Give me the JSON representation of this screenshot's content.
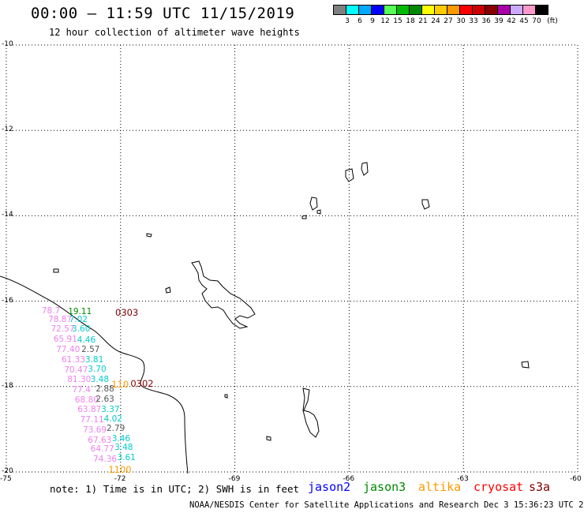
{
  "title": "00:00 – 11:59 UTC 11/15/2019",
  "subtitle": "12 hour collection of altimeter wave heights",
  "note": "note: 1) Time is in UTC; 2) SWH is in feet",
  "credits": "NOAA/NESDIS Center for Satellite Applications and Research   Dec  3 15:36:23 UTC 2019",
  "satellites": [
    {
      "name": "jason2",
      "color": "#0000ff"
    },
    {
      "name": "jason3",
      "color": "#008a00"
    },
    {
      "name": "altika",
      "color": "#ff9900"
    },
    {
      "name": "cryosat",
      "color": "#ff0000"
    },
    {
      "name": "s3a",
      "color": "#800000"
    }
  ],
  "color_scale": {
    "unit": "(ft)",
    "labels": [
      "3",
      "6",
      "9",
      "12",
      "15",
      "18",
      "21",
      "24",
      "27",
      "30",
      "33",
      "36",
      "39",
      "42",
      "45",
      "70"
    ],
    "colors": [
      "#808080",
      "#00ffff",
      "#00aaff",
      "#0000ff",
      "#55ff55",
      "#00bb00",
      "#008800",
      "#ffff00",
      "#ffcc00",
      "#ff9900",
      "#ff0000",
      "#cc0000",
      "#880000",
      "#aa00aa",
      "#ccaaff",
      "#ff99cc",
      "#000000"
    ]
  },
  "axes": {
    "lat_labels": [
      "-10",
      "-12",
      "-14",
      "-16",
      "-18",
      "-20"
    ],
    "lon_labels": [
      "-75",
      "-72",
      "-69",
      "-66",
      "-63",
      "-60"
    ]
  },
  "time_labels": [
    {
      "text": "0303",
      "lon": -72.14,
      "lat": -16.26,
      "color": "#800000"
    },
    {
      "text": "0302",
      "lon": -71.74,
      "lat": -17.93,
      "color": "#800000"
    },
    {
      "text": "1100",
      "lon": -72.32,
      "lat": -19.95,
      "color": "#ff9900"
    },
    {
      "text": "110",
      "lon": -72.24,
      "lat": -17.94,
      "color": "#ff9900"
    }
  ],
  "observations": [
    {
      "text": "78.7",
      "lon": -74.07,
      "lat": -16.25,
      "color": "#ee82ee"
    },
    {
      "text": "19.11",
      "lon": -73.38,
      "lat": -16.26,
      "color": "#008a00"
    },
    {
      "text": "78.87",
      "lon": -73.9,
      "lat": -16.45,
      "color": "#ee82ee"
    },
    {
      "text": "7.02",
      "lon": -73.35,
      "lat": -16.46,
      "color": "#00cccc"
    },
    {
      "text": "72.57",
      "lon": -73.83,
      "lat": -16.68,
      "color": "#ee82ee"
    },
    {
      "text": "3.60",
      "lon": -73.28,
      "lat": -16.68,
      "color": "#00cccc"
    },
    {
      "text": "65.91",
      "lon": -73.76,
      "lat": -16.92,
      "color": "#ee82ee"
    },
    {
      "text": "4.46",
      "lon": -73.14,
      "lat": -16.93,
      "color": "#00cccc"
    },
    {
      "text": "77.40",
      "lon": -73.69,
      "lat": -17.15,
      "color": "#ee82ee"
    },
    {
      "text": "2.57",
      "lon": -73.03,
      "lat": -17.15,
      "color": "#555555"
    },
    {
      "text": "61.33",
      "lon": -73.55,
      "lat": -17.4,
      "color": "#ee82ee"
    },
    {
      "text": "3.81",
      "lon": -72.93,
      "lat": -17.4,
      "color": "#00cccc"
    },
    {
      "text": "70.47",
      "lon": -73.48,
      "lat": -17.63,
      "color": "#ee82ee"
    },
    {
      "text": "3.70",
      "lon": -72.86,
      "lat": -17.61,
      "color": "#00cccc"
    },
    {
      "text": "81.30",
      "lon": -73.4,
      "lat": -17.86,
      "color": "#ee82ee"
    },
    {
      "text": "3.48",
      "lon": -72.79,
      "lat": -17.86,
      "color": "#00cccc"
    },
    {
      "text": "77.4",
      "lon": -73.27,
      "lat": -18.09,
      "color": "#ee82ee"
    },
    {
      "text": "2.88",
      "lon": -72.65,
      "lat": -18.08,
      "color": "#555555"
    },
    {
      "text": "68.80",
      "lon": -73.2,
      "lat": -18.33,
      "color": "#ee82ee"
    },
    {
      "text": "2.63",
      "lon": -72.65,
      "lat": -18.31,
      "color": "#555555"
    },
    {
      "text": "63.87",
      "lon": -73.13,
      "lat": -18.56,
      "color": "#ee82ee"
    },
    {
      "text": "3.37",
      "lon": -72.51,
      "lat": -18.55,
      "color": "#00cccc"
    },
    {
      "text": "77.11",
      "lon": -73.06,
      "lat": -18.8,
      "color": "#ee82ee"
    },
    {
      "text": "4.02",
      "lon": -72.44,
      "lat": -18.78,
      "color": "#00cccc"
    },
    {
      "text": "73.69",
      "lon": -72.99,
      "lat": -19.03,
      "color": "#ee82ee"
    },
    {
      "text": "2.79",
      "lon": -72.37,
      "lat": -19.01,
      "color": "#555555"
    },
    {
      "text": "67.63",
      "lon": -72.86,
      "lat": -19.27,
      "color": "#ee82ee"
    },
    {
      "text": "3.46",
      "lon": -72.23,
      "lat": -19.24,
      "color": "#00cccc"
    },
    {
      "text": "64.77",
      "lon": -72.79,
      "lat": -19.48,
      "color": "#ee82ee"
    },
    {
      "text": "3.48",
      "lon": -72.16,
      "lat": -19.45,
      "color": "#00cccc"
    },
    {
      "text": "74.36",
      "lon": -72.72,
      "lat": -19.72,
      "color": "#ee82ee"
    },
    {
      "text": "3.61",
      "lon": -72.09,
      "lat": -19.68,
      "color": "#00cccc"
    }
  ]
}
